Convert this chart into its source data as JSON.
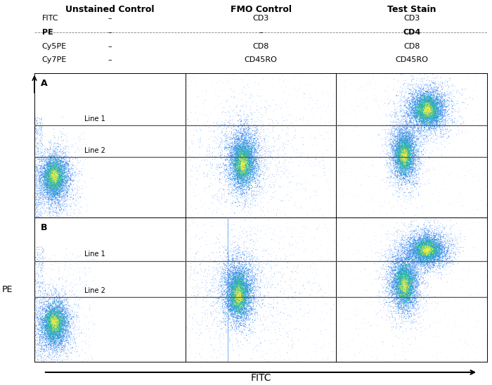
{
  "title_row": {
    "col1": "Unstained Control",
    "col2": "FMO Control",
    "col3": "Test Stain"
  },
  "table_rows": [
    {
      "label": "FITC",
      "col1": "–",
      "col2": "CD3",
      "col3": "CD3",
      "bold_col3": false,
      "bold_label": false
    },
    {
      "label": "PE",
      "col1": "–",
      "col2": "–",
      "col3": "CD4",
      "bold_col3": true,
      "bold_label": true
    },
    {
      "label": "Cy5PE",
      "col1": "–",
      "col2": "CD8",
      "col3": "CD8",
      "bold_col3": false,
      "bold_label": false
    },
    {
      "label": "Cy7PE",
      "col1": "–",
      "col2": "CD45RO",
      "col3": "CD45RO",
      "bold_col3": false,
      "bold_label": false
    }
  ],
  "panel_A_label": "A",
  "panel_B_label": "B",
  "line1_label": "Line 1",
  "line2_label": "Line 2",
  "xlabel": "FITC",
  "ylabel": "PE",
  "bg_color": "#ffffff",
  "border_color": "#555555",
  "line_color": "#555555",
  "seed": 42
}
